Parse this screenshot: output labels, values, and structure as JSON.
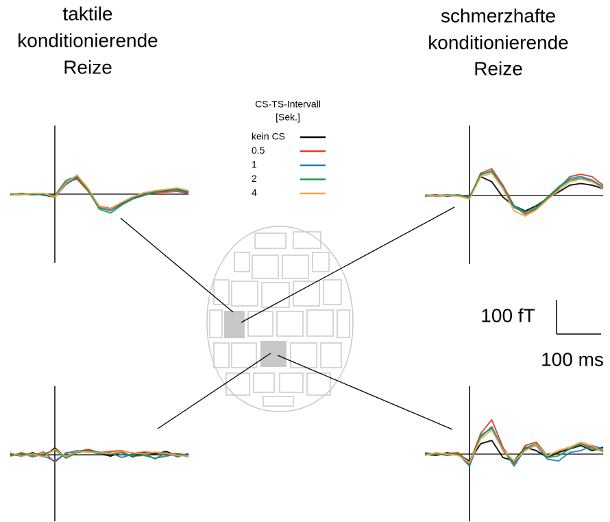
{
  "titles": {
    "left": [
      "taktile",
      "konditionierende",
      "Reize"
    ],
    "right": [
      "schmerzhafte",
      "konditionierende",
      "Reize"
    ]
  },
  "legend": {
    "title": [
      "CS-TS-Intervall",
      "[Sek.]"
    ]
  },
  "scale_bar": {
    "y_label": "100 fT",
    "x_label": "100 ms",
    "y_value": 100,
    "x_value": 100
  },
  "chart_data": [
    {
      "type": "line",
      "x": [
        -100,
        -75,
        -50,
        -25,
        0,
        25,
        50,
        75,
        100,
        125,
        150,
        175,
        200,
        225,
        250,
        275,
        300
      ],
      "series": [
        {
          "name": "kein CS",
          "color": "#000000",
          "values": [
            0,
            -2,
            2,
            -3,
            -8,
            30,
            48,
            12,
            -38,
            -45,
            -28,
            -12,
            -2,
            6,
            10,
            14,
            6
          ]
        },
        {
          "name": "0.5",
          "color": "#e03a1e",
          "values": [
            2,
            0,
            -2,
            2,
            -10,
            35,
            44,
            8,
            -35,
            -42,
            -25,
            -8,
            0,
            4,
            6,
            8,
            2
          ]
        },
        {
          "name": "1",
          "color": "#1f7ac2",
          "values": [
            -2,
            2,
            0,
            -2,
            -6,
            28,
            50,
            14,
            -40,
            -48,
            -30,
            -10,
            2,
            8,
            12,
            12,
            4
          ]
        },
        {
          "name": "2",
          "color": "#1a9a48",
          "values": [
            0,
            2,
            -2,
            0,
            -4,
            40,
            52,
            10,
            -44,
            -55,
            -32,
            -14,
            -4,
            6,
            12,
            16,
            8
          ]
        },
        {
          "name": "4",
          "color": "#f4a340",
          "values": [
            2,
            -2,
            2,
            2,
            -8,
            32,
            56,
            16,
            -36,
            -44,
            -24,
            -8,
            4,
            10,
            14,
            18,
            10
          ]
        }
      ]
    },
    {
      "type": "line",
      "x": [
        -100,
        -75,
        -50,
        -25,
        0,
        25,
        50,
        75,
        100,
        125,
        150,
        175,
        200,
        225,
        250,
        275,
        300
      ],
      "series": [
        {
          "color": "#000000",
          "values": [
            0,
            2,
            -2,
            0,
            -6,
            55,
            40,
            -5,
            -30,
            -45,
            -30,
            -8,
            10,
            30,
            35,
            30,
            20
          ]
        },
        {
          "color": "#e03a1e",
          "values": [
            2,
            -2,
            0,
            2,
            -8,
            65,
            78,
            30,
            -30,
            -55,
            -40,
            -10,
            20,
            55,
            62,
            55,
            30
          ]
        },
        {
          "color": "#1f7ac2",
          "values": [
            -2,
            0,
            2,
            0,
            -4,
            60,
            72,
            25,
            -35,
            -50,
            -35,
            -5,
            25,
            50,
            55,
            45,
            25
          ]
        },
        {
          "color": "#1a9a48",
          "values": [
            0,
            2,
            -2,
            2,
            -6,
            62,
            70,
            22,
            -30,
            -48,
            -38,
            -6,
            22,
            45,
            50,
            42,
            22
          ]
        },
        {
          "color": "#f4a340",
          "values": [
            2,
            0,
            0,
            -2,
            -10,
            55,
            65,
            20,
            -45,
            -60,
            -42,
            -12,
            15,
            40,
            48,
            40,
            20
          ]
        }
      ]
    },
    {
      "type": "line",
      "x": [
        -100,
        -75,
        -50,
        -25,
        0,
        25,
        50,
        75,
        100,
        125,
        150,
        175,
        200,
        225,
        250,
        275,
        300
      ],
      "series": [
        {
          "color": "#000000",
          "values": [
            2,
            -4,
            6,
            -6,
            20,
            -8,
            10,
            14,
            4,
            -4,
            8,
            -6,
            6,
            2,
            10,
            -4,
            2
          ]
        },
        {
          "color": "#e03a1e",
          "values": [
            -4,
            6,
            -2,
            8,
            -22,
            6,
            8,
            16,
            6,
            10,
            12,
            4,
            8,
            6,
            2,
            4,
            -2
          ]
        },
        {
          "color": "#1f7ac2",
          "values": [
            4,
            -2,
            4,
            -4,
            -18,
            4,
            12,
            10,
            2,
            6,
            -8,
            2,
            4,
            -12,
            6,
            -6,
            4
          ]
        },
        {
          "color": "#1a9a48",
          "values": [
            -2,
            4,
            -6,
            2,
            14,
            -10,
            6,
            12,
            8,
            2,
            6,
            -4,
            -2,
            -10,
            -4,
            2,
            -6
          ]
        },
        {
          "color": "#f4a340",
          "values": [
            6,
            -4,
            2,
            -6,
            16,
            -6,
            10,
            8,
            6,
            4,
            10,
            6,
            2,
            8,
            4,
            -2,
            -4
          ]
        }
      ]
    },
    {
      "type": "line",
      "x": [
        -100,
        -75,
        -50,
        -25,
        0,
        25,
        50,
        75,
        100,
        125,
        150,
        175,
        200,
        225,
        250,
        275,
        300
      ],
      "series": [
        {
          "color": "#000000",
          "values": [
            0,
            -4,
            4,
            -2,
            -20,
            30,
            40,
            -10,
            -20,
            20,
            10,
            -10,
            5,
            15,
            25,
            10,
            20
          ]
        },
        {
          "color": "#e03a1e",
          "values": [
            2,
            -2,
            2,
            4,
            -25,
            60,
            100,
            20,
            -30,
            25,
            35,
            -5,
            10,
            20,
            30,
            20,
            10
          ]
        },
        {
          "color": "#1f7ac2",
          "values": [
            -2,
            2,
            -4,
            0,
            -35,
            50,
            80,
            15,
            -35,
            15,
            25,
            -15,
            -20,
            5,
            10,
            25,
            15
          ]
        },
        {
          "color": "#1a9a48",
          "values": [
            4,
            0,
            -2,
            2,
            -30,
            55,
            75,
            10,
            -25,
            18,
            30,
            -10,
            -5,
            15,
            30,
            15,
            10
          ]
        },
        {
          "color": "#f4a340",
          "values": [
            -4,
            4,
            0,
            -4,
            -25,
            45,
            70,
            12,
            -20,
            10,
            28,
            -5,
            10,
            20,
            35,
            25,
            5
          ]
        }
      ]
    }
  ]
}
